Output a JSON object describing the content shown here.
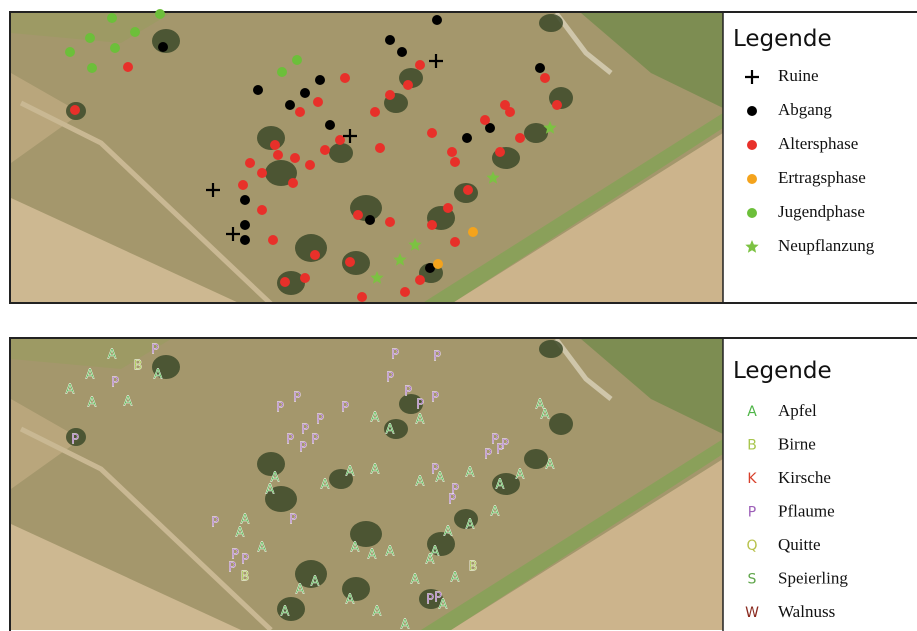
{
  "legend_top": {
    "title": "Legende",
    "items": [
      {
        "label": "Ruine",
        "color": "#000000"
      },
      {
        "label": "Abgang",
        "color": "#000000"
      },
      {
        "label": "Altersphase",
        "color": "#e8302a"
      },
      {
        "label": "Ertragsphase",
        "color": "#f4a31c"
      },
      {
        "label": "Jugendphase",
        "color": "#6cbf3a"
      },
      {
        "label": "Neupflanzung",
        "color": "#7cc242"
      }
    ]
  },
  "legend_bottom": {
    "title": "Legende",
    "items": [
      {
        "symbol": "A",
        "label": "Apfel",
        "color": "#4fb548"
      },
      {
        "symbol": "B",
        "label": "Birne",
        "color": "#a8c64e"
      },
      {
        "symbol": "K",
        "label": "Kirsche",
        "color": "#d8402b"
      },
      {
        "symbol": "P",
        "label": "Pflaume",
        "color": "#9d5fb8"
      },
      {
        "symbol": "Q",
        "label": "Quitte",
        "color": "#b7c14a"
      },
      {
        "symbol": "S",
        "label": "Speierling",
        "color": "#5fa54a"
      },
      {
        "symbol": "W",
        "label": "Walnuss",
        "color": "#8a2a1f"
      }
    ]
  }
}
